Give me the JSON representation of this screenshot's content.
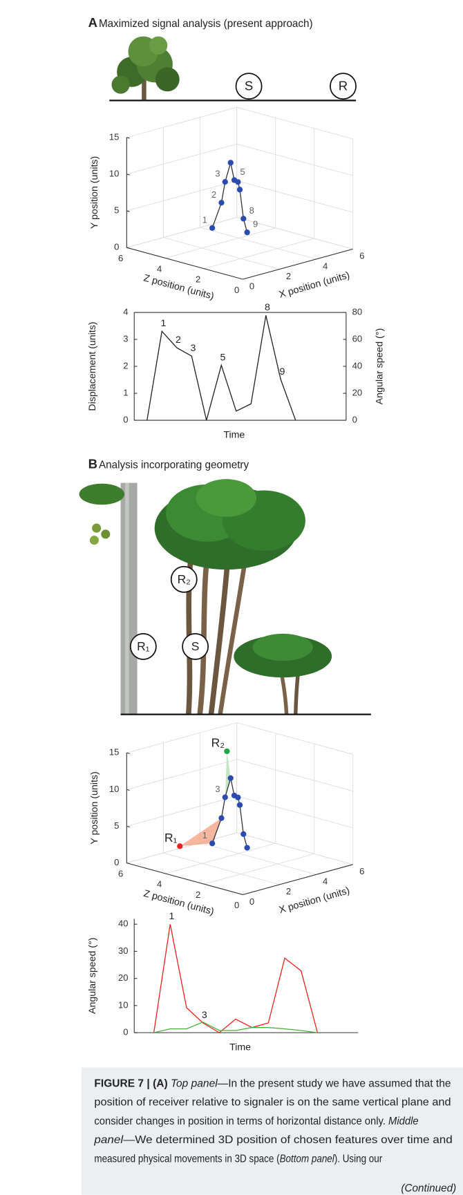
{
  "figure": {
    "panel_a": {
      "label": "A",
      "title": "Maximized signal analysis (present approach)",
      "signaler": "S",
      "receiver": "R"
    },
    "panel_b": {
      "label": "B",
      "title": "Analysis incorporating geometry",
      "receiver_1": "R₁",
      "receiver_2": "R₂",
      "signaler": "S"
    }
  },
  "chart_data": [
    {
      "type": "scatter3d",
      "xlabel": "X position (units)",
      "ylabel": "Y position (units)",
      "zlabel": "Z position (units)",
      "xlim": [
        0,
        6
      ],
      "ylim": [
        0,
        15
      ],
      "zlim": [
        0,
        6
      ],
      "xticks": [
        0,
        2,
        4,
        6
      ],
      "yticks": [
        0,
        5,
        10,
        15
      ],
      "zticks": [
        0,
        2,
        4,
        6
      ],
      "grid": true,
      "color": "#2b4bb0",
      "x": [
        1.5,
        2.0,
        2.2,
        2.5,
        2.7,
        2.9,
        3.0,
        3.2,
        3.4
      ],
      "y": [
        3.8,
        6.9,
        9.6,
        12.0,
        9.5,
        9.1,
        8.0,
        3.9,
        1.9
      ],
      "z": [
        3,
        3,
        3,
        3,
        3,
        3,
        3,
        3,
        3
      ],
      "point_labels": [
        {
          "index": 0,
          "text": "1"
        },
        {
          "index": 1,
          "text": "2"
        },
        {
          "index": 2,
          "text": "3"
        },
        {
          "index": 4,
          "text": "5"
        },
        {
          "index": 7,
          "text": "8"
        },
        {
          "index": 8,
          "text": "9"
        }
      ]
    },
    {
      "type": "line",
      "xlabel": "Time",
      "ylabel": "Displacement (units)",
      "y2label": "Angular speed (°)",
      "ylim": [
        0,
        4
      ],
      "yticks": [
        0,
        1,
        2,
        3,
        4
      ],
      "y2lim": [
        0,
        80
      ],
      "y2ticks": [
        0,
        20,
        40,
        60,
        80
      ],
      "color": "#222222",
      "values": [
        0,
        3.3,
        2.69,
        2.38,
        0,
        2.04,
        0.34,
        0.61,
        3.89,
        1.51,
        0
      ],
      "point_labels": [
        {
          "index": 1,
          "text": "1"
        },
        {
          "index": 2,
          "text": "2"
        },
        {
          "index": 3,
          "text": "3"
        },
        {
          "index": 5,
          "text": "5"
        },
        {
          "index": 8,
          "text": "8"
        },
        {
          "index": 9,
          "text": "9"
        }
      ]
    },
    {
      "type": "scatter3d",
      "xlabel": "X position (units)",
      "ylabel": "Y position (units)",
      "zlabel": "Z position (units)",
      "xlim": [
        0,
        6
      ],
      "ylim": [
        0,
        15
      ],
      "zlim": [
        0,
        6
      ],
      "xticks": [
        0,
        2,
        4,
        6
      ],
      "yticks": [
        0,
        5,
        10,
        15
      ],
      "zticks": [
        0,
        2,
        4,
        6
      ],
      "grid": true,
      "color": "#2b4bb0",
      "x": [
        1.5,
        2.0,
        2.2,
        2.5,
        2.7,
        2.9,
        3.0,
        3.2,
        3.4
      ],
      "y": [
        3.8,
        6.9,
        9.6,
        12.0,
        9.5,
        9.1,
        8.0,
        3.9,
        1.9
      ],
      "z": [
        3,
        3,
        3,
        3,
        3,
        3,
        3,
        3,
        3
      ],
      "receivers": [
        {
          "name": "R₁",
          "color": "#e8231f",
          "x": 1,
          "y": 2.9,
          "z": 4.2,
          "fill": "#f4a58a",
          "triangle": [
            0,
            1
          ]
        },
        {
          "name": "R₂",
          "color": "#1fa64a",
          "x": 2.3,
          "y": 15.8,
          "z": 3,
          "fill": "#b7dcb8",
          "triangle": [
            2,
            3
          ]
        }
      ],
      "point_labels": [
        {
          "index": 0,
          "text": "1"
        },
        {
          "index": 2,
          "text": "3"
        }
      ]
    },
    {
      "type": "line",
      "xlabel": "Time",
      "ylabel": "Angular speed (°)",
      "ylim": [
        0,
        42
      ],
      "yticks": [
        0,
        10,
        20,
        30,
        40
      ],
      "series": [
        {
          "color": "#e8231f",
          "values": [
            0,
            40,
            9.2,
            3.6,
            0,
            5,
            1.9,
            3.6,
            27.5,
            22.8,
            0
          ]
        },
        {
          "color": "#4aae3c",
          "values": [
            0,
            1.4,
            1.4,
            3.9,
            0.8,
            0.8,
            1.9,
            1.9,
            1.4,
            0.8,
            0
          ]
        }
      ],
      "point_labels": [
        {
          "index": 1,
          "text": "1"
        },
        {
          "index": 3,
          "text": "3"
        }
      ]
    }
  ],
  "caption": {
    "lines": [
      [
        {
          "text": "FIGURE 7 | (A)",
          "style": "bold"
        },
        {
          "text": "Top panel",
          "style": "italic"
        },
        {
          "text": "—In the present study we have assumed that the",
          "style": "normal"
        }
      ],
      [
        {
          "text": "position of receiver relative to signaler is on the same vertical plane and",
          "style": "normal"
        }
      ],
      [
        {
          "text": "consider changes in position in terms of horizontal distance only.",
          "style": "normal"
        },
        {
          "text": "Middle",
          "style": "italic"
        }
      ],
      [
        {
          "text": "panel",
          "style": "italic"
        },
        {
          "text": "—We determined 3D position of chosen features over time and",
          "style": "normal"
        }
      ],
      [
        {
          "text": "measured physical movements in 3D space (",
          "style": "normal"
        },
        {
          "text": "Bottom panel",
          "style": "italic"
        },
        {
          "text": "). Using our",
          "style": "normal"
        }
      ]
    ],
    "continued": "(Continued)"
  }
}
